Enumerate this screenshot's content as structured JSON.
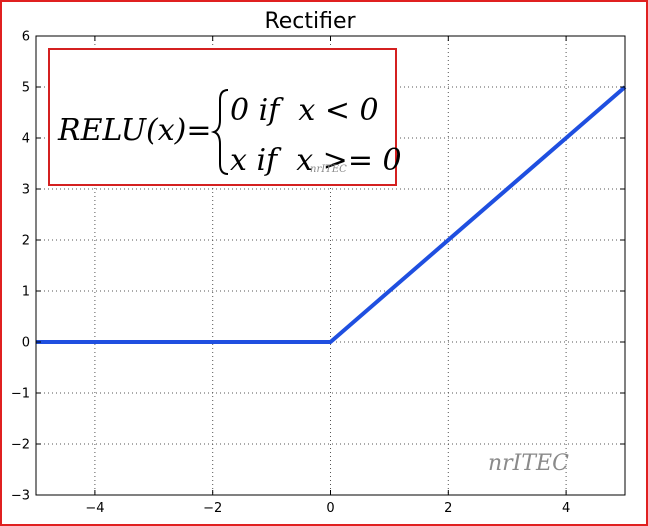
{
  "chart_data": {
    "type": "line",
    "title": "Rectifier",
    "xlabel": "",
    "ylabel": "",
    "xlim": [
      -5,
      5
    ],
    "ylim": [
      -3,
      6
    ],
    "xticks": [
      -4,
      -2,
      0,
      2,
      4
    ],
    "yticks": [
      -3,
      -2,
      -1,
      0,
      1,
      2,
      3,
      4,
      5,
      6
    ],
    "xtick_labels": [
      "−4",
      "−2",
      "0",
      "2",
      "4"
    ],
    "ytick_labels": [
      "−3",
      "−2",
      "−1",
      "0",
      "1",
      "2",
      "3",
      "4",
      "5",
      "6"
    ],
    "grid": true,
    "series": [
      {
        "x": [
          -5,
          0,
          5
        ],
        "y": [
          0,
          0,
          5
        ],
        "color": "#1f4fe0"
      }
    ]
  },
  "formula": {
    "lhs": "RELU(x)=",
    "case1": "0 if  x < 0",
    "case2": "x if  x >= 0",
    "box_color": "#d42020"
  },
  "watermarks": {
    "small": "nrITEC",
    "large": "nrITEC"
  },
  "frame_color": "#e02020"
}
